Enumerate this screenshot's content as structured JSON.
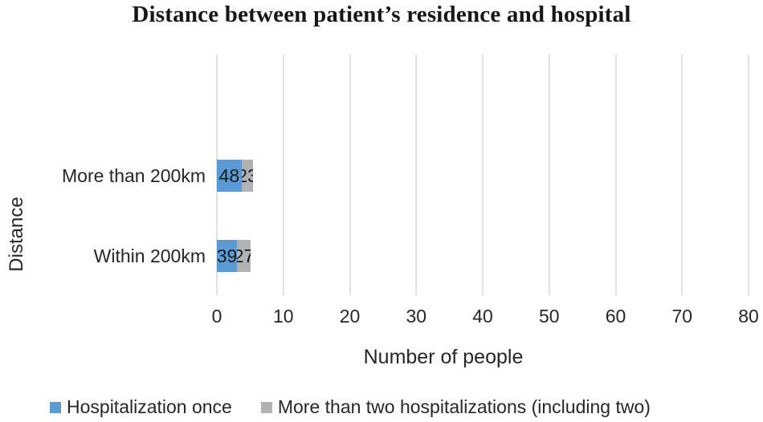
{
  "chart_data": {
    "type": "bar",
    "orientation": "horizontal",
    "stacked": true,
    "title": "Distance between patient’s residence and hospital",
    "xlabel": "Number of people",
    "ylabel": "Distance",
    "categories": [
      "More than 200km",
      "Within 200km"
    ],
    "series": [
      {
        "name": "Hospitalization once",
        "color": "#5b9bd5",
        "values": [
          48,
          39
        ]
      },
      {
        "name": "More than two hospitalizations (including two)",
        "color": "#b1b2b4",
        "values": [
          23,
          27
        ]
      }
    ],
    "xlim": [
      0,
      80
    ],
    "xticks": [
      0,
      10,
      20,
      30,
      40,
      50,
      60,
      70,
      80
    ],
    "grid": true,
    "gridline_color": "#e1e1e1",
    "legend_position": "bottom"
  }
}
